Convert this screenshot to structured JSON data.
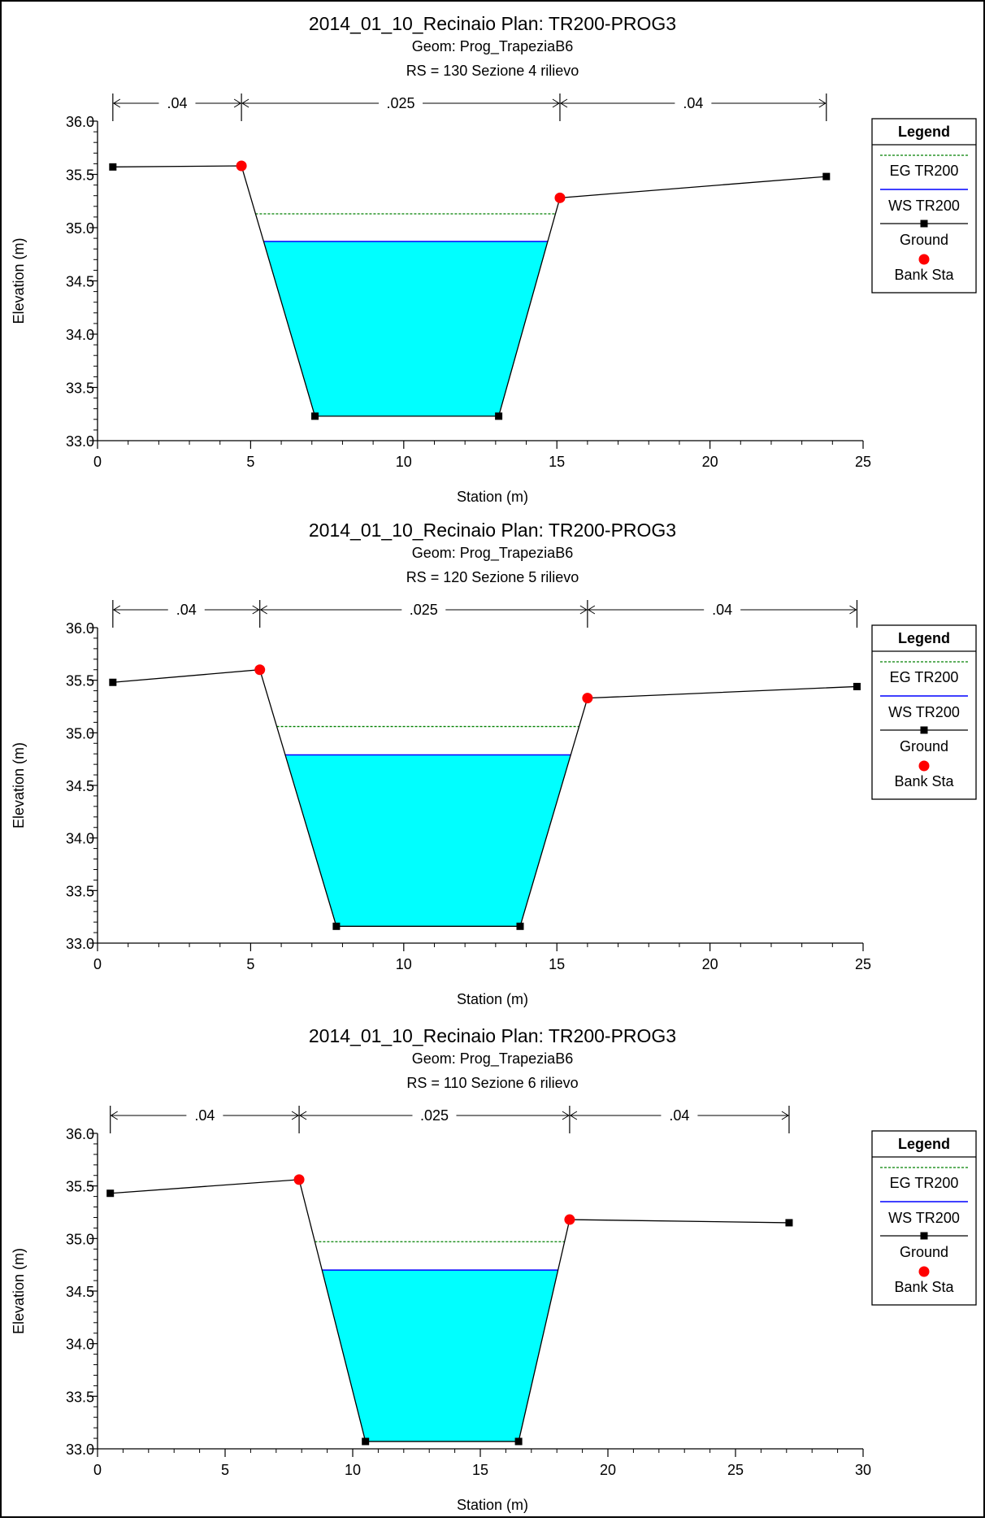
{
  "colors": {
    "water": "#00ffff",
    "ground": "#000000",
    "eg": "#008000",
    "ws": "#0000ff",
    "bank": "#ff0000"
  },
  "chart_data": [
    {
      "type": "line",
      "title": "2014_01_10_Recinaio       Plan: TR200-PROG3",
      "subtitle": "Geom: Prog_TrapeziaB6",
      "subtitle2": "RS = 130  Sezione 4 rilievo",
      "xlabel": "Station (m)",
      "ylabel": "Elevation (m)",
      "xlim": [
        0,
        25
      ],
      "ylim": [
        33.0,
        36.0
      ],
      "xticks": [
        0,
        5,
        10,
        15,
        20,
        25
      ],
      "yticks": [
        33.0,
        33.5,
        34.0,
        34.5,
        35.0,
        35.5,
        36.0
      ],
      "xtick_labels": [
        "0",
        "5",
        "10",
        "15",
        "20",
        "25"
      ],
      "ytick_labels": [
        "33.0",
        "33.5",
        "34.0",
        "34.5",
        "35.0",
        "35.5",
        "36.0"
      ],
      "ground": {
        "name": "Ground",
        "x": [
          0.5,
          4.7,
          7.1,
          13.1,
          15.1,
          23.8
        ],
        "y": [
          35.57,
          35.58,
          33.23,
          33.23,
          35.28,
          35.48
        ]
      },
      "bank_stations": {
        "name": "Bank Sta",
        "x": [
          4.7,
          15.1
        ],
        "y": [
          35.58,
          35.28
        ]
      },
      "ws": {
        "name": "WS TR200",
        "elevation": 34.87
      },
      "eg": {
        "name": "EG TR200",
        "elevation": 35.13
      },
      "mannings": {
        "boundaries": [
          0.5,
          4.7,
          15.1,
          23.8
        ],
        "labels": [
          ".04",
          ".025",
          ".04"
        ]
      },
      "legend": {
        "title": "Legend",
        "position": "right",
        "entries": [
          "EG TR200",
          "WS TR200",
          "Ground",
          "Bank Sta"
        ]
      }
    },
    {
      "type": "line",
      "title": "2014_01_10_Recinaio       Plan: TR200-PROG3",
      "subtitle": "Geom: Prog_TrapeziaB6",
      "subtitle2": "RS = 120  Sezione 5 rilievo",
      "xlabel": "Station (m)",
      "ylabel": "Elevation (m)",
      "xlim": [
        0,
        25
      ],
      "ylim": [
        33.0,
        36.0
      ],
      "xticks": [
        0,
        5,
        10,
        15,
        20,
        25
      ],
      "yticks": [
        33.0,
        33.5,
        34.0,
        34.5,
        35.0,
        35.5,
        36.0
      ],
      "xtick_labels": [
        "0",
        "5",
        "10",
        "15",
        "20",
        "25"
      ],
      "ytick_labels": [
        "33.0",
        "33.5",
        "34.0",
        "34.5",
        "35.0",
        "35.5",
        "36.0"
      ],
      "ground": {
        "name": "Ground",
        "x": [
          0.5,
          5.3,
          7.8,
          13.8,
          16.0,
          24.8
        ],
        "y": [
          35.48,
          35.6,
          33.16,
          33.16,
          35.33,
          35.44
        ]
      },
      "bank_stations": {
        "name": "Bank Sta",
        "x": [
          5.3,
          16.0
        ],
        "y": [
          35.6,
          35.33
        ]
      },
      "ws": {
        "name": "WS TR200",
        "elevation": 34.79
      },
      "eg": {
        "name": "EG TR200",
        "elevation": 35.06
      },
      "mannings": {
        "boundaries": [
          0.5,
          5.3,
          16.0,
          24.8
        ],
        "labels": [
          ".04",
          ".025",
          ".04"
        ]
      },
      "legend": {
        "title": "Legend",
        "position": "right",
        "entries": [
          "EG TR200",
          "WS TR200",
          "Ground",
          "Bank Sta"
        ]
      }
    },
    {
      "type": "line",
      "title": "2014_01_10_Recinaio       Plan: TR200-PROG3",
      "subtitle": "Geom: Prog_TrapeziaB6",
      "subtitle2": "RS = 110  Sezione 6 rilievo",
      "xlabel": "Station (m)",
      "ylabel": "Elevation (m)",
      "xlim": [
        0,
        30
      ],
      "ylim": [
        33.0,
        36.0
      ],
      "xticks": [
        0,
        5,
        10,
        15,
        20,
        25,
        30
      ],
      "yticks": [
        33.0,
        33.5,
        34.0,
        34.5,
        35.0,
        35.5,
        36.0
      ],
      "xtick_labels": [
        "0",
        "5",
        "10",
        "15",
        "20",
        "25",
        "30"
      ],
      "ytick_labels": [
        "33.0",
        "33.5",
        "34.0",
        "34.5",
        "35.0",
        "35.5",
        "36.0"
      ],
      "ground": {
        "name": "Ground",
        "x": [
          0.5,
          7.9,
          10.5,
          16.5,
          18.5,
          27.1
        ],
        "y": [
          35.43,
          35.56,
          33.07,
          33.07,
          35.18,
          35.15
        ]
      },
      "bank_stations": {
        "name": "Bank Sta",
        "x": [
          7.9,
          18.5
        ],
        "y": [
          35.56,
          35.18
        ]
      },
      "ws": {
        "name": "WS TR200",
        "elevation": 34.7
      },
      "eg": {
        "name": "EG TR200",
        "elevation": 34.97
      },
      "mannings": {
        "boundaries": [
          0.5,
          7.9,
          18.5,
          27.1
        ],
        "labels": [
          ".04",
          ".025",
          ".04"
        ]
      },
      "legend": {
        "title": "Legend",
        "position": "right",
        "entries": [
          "EG TR200",
          "WS TR200",
          "Ground",
          "Bank Sta"
        ]
      }
    }
  ]
}
